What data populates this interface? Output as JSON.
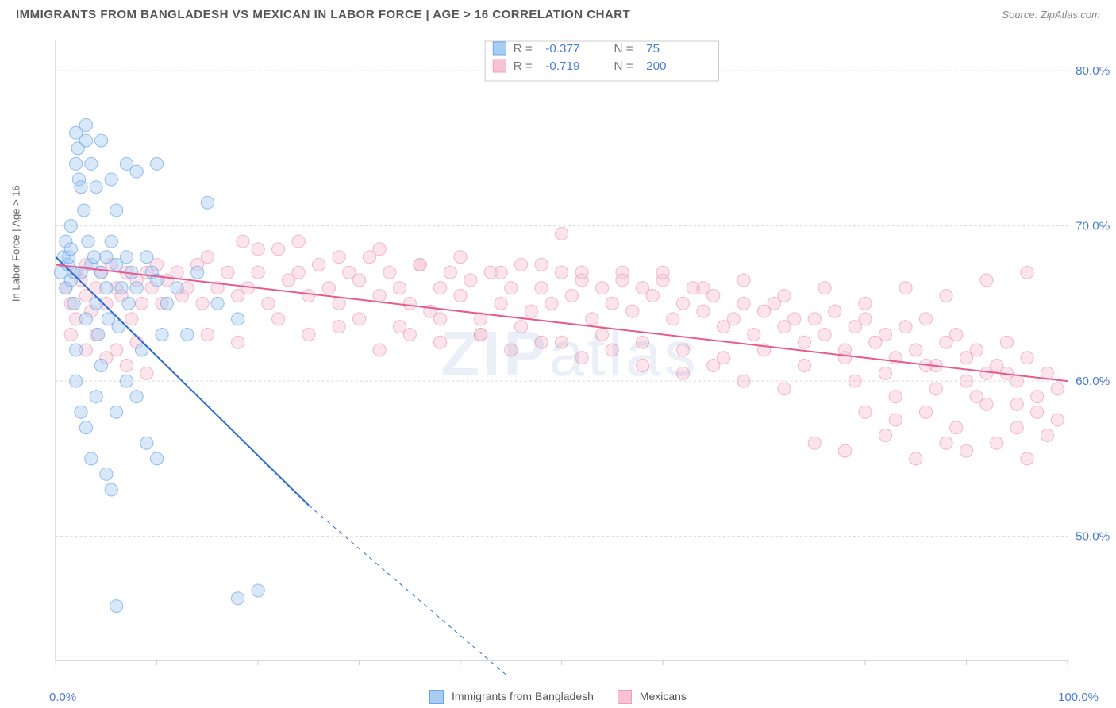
{
  "header": {
    "title": "IMMIGRANTS FROM BANGLADESH VS MEXICAN IN LABOR FORCE | AGE > 16 CORRELATION CHART",
    "source_label": "Source:",
    "source_name": "ZipAtlas.com"
  },
  "chart": {
    "type": "scatter",
    "ylabel": "In Labor Force | Age > 16",
    "xlim": [
      0,
      100
    ],
    "ylim": [
      42,
      82
    ],
    "xtick_labels": [
      "0.0%",
      "100.0%"
    ],
    "ytick_values": [
      50,
      60,
      70,
      80
    ],
    "ytick_labels": [
      "50.0%",
      "60.0%",
      "70.0%",
      "80.0%"
    ],
    "grid_color": "#d8d8d8",
    "axis_color": "#cccccc",
    "background_color": "#ffffff",
    "tick_label_color": "#4a7bd8",
    "marker_radius": 8,
    "marker_opacity": 0.45,
    "line_width": 2,
    "series": [
      {
        "name": "Immigrants from Bangladesh",
        "color": "#6ea5e8",
        "fill": "#a9cdf2",
        "line_color": "#2e6bd1",
        "R": "-0.377",
        "N": "75",
        "trend": {
          "x1": 0,
          "y1": 68,
          "x2": 25,
          "y2": 52,
          "extrap_x2": 50,
          "extrap_y2": 38
        },
        "points": [
          [
            0.5,
            67
          ],
          [
            0.8,
            68
          ],
          [
            1,
            66
          ],
          [
            1,
            69
          ],
          [
            1.2,
            67.5
          ],
          [
            1.3,
            68
          ],
          [
            1.5,
            66.5
          ],
          [
            1.5,
            70
          ],
          [
            1.8,
            67
          ],
          [
            2,
            74
          ],
          [
            2,
            76
          ],
          [
            2.2,
            75
          ],
          [
            2.3,
            73
          ],
          [
            2.5,
            72.5
          ],
          [
            2.5,
            67
          ],
          [
            2.8,
            71
          ],
          [
            3,
            76.5
          ],
          [
            3,
            75.5
          ],
          [
            3.2,
            69
          ],
          [
            3.5,
            67.5
          ],
          [
            3.5,
            74
          ],
          [
            3.8,
            68
          ],
          [
            4,
            72.5
          ],
          [
            4,
            65
          ],
          [
            4.2,
            63
          ],
          [
            4.5,
            67
          ],
          [
            4.5,
            75.5
          ],
          [
            5,
            66
          ],
          [
            5,
            68
          ],
          [
            5.2,
            64
          ],
          [
            5.5,
            73
          ],
          [
            5.5,
            69
          ],
          [
            6,
            67.5
          ],
          [
            6,
            71
          ],
          [
            6.2,
            63.5
          ],
          [
            6.5,
            66
          ],
          [
            7,
            74
          ],
          [
            7,
            68
          ],
          [
            7.2,
            65
          ],
          [
            7.5,
            67
          ],
          [
            8,
            73.5
          ],
          [
            8,
            66
          ],
          [
            8.5,
            62
          ],
          [
            9,
            68
          ],
          [
            9.5,
            67
          ],
          [
            10,
            74
          ],
          [
            10,
            66.5
          ],
          [
            10.5,
            63
          ],
          [
            2,
            60
          ],
          [
            2.5,
            58
          ],
          [
            3,
            57
          ],
          [
            3.5,
            55
          ],
          [
            4,
            59
          ],
          [
            5,
            54
          ],
          [
            5.5,
            53
          ],
          [
            6,
            58
          ],
          [
            2,
            62
          ],
          [
            3,
            64
          ],
          [
            1.5,
            68.5
          ],
          [
            1.8,
            65
          ],
          [
            8,
            59
          ],
          [
            9,
            56
          ],
          [
            10,
            55
          ],
          [
            11,
            65
          ],
          [
            12,
            66
          ],
          [
            13,
            63
          ],
          [
            14,
            67
          ],
          [
            15,
            71.5
          ],
          [
            16,
            65
          ],
          [
            18,
            64
          ],
          [
            6,
            45.5
          ],
          [
            18,
            46
          ],
          [
            20,
            46.5
          ],
          [
            7,
            60
          ],
          [
            4.5,
            61
          ]
        ]
      },
      {
        "name": "Mexicans",
        "color": "#f09db8",
        "fill": "#f7c3d3",
        "line_color": "#e85a8c",
        "R": "-0.719",
        "N": "200",
        "trend": {
          "x1": 0,
          "y1": 67.5,
          "x2": 100,
          "y2": 60
        },
        "points": [
          [
            1,
            66
          ],
          [
            1.5,
            65
          ],
          [
            2,
            67
          ],
          [
            2,
            64
          ],
          [
            2.5,
            66.5
          ],
          [
            3,
            65.5
          ],
          [
            3,
            67.5
          ],
          [
            3.5,
            64.5
          ],
          [
            4,
            66
          ],
          [
            4.5,
            67
          ],
          [
            5,
            65
          ],
          [
            5.5,
            67.5
          ],
          [
            6,
            66
          ],
          [
            6.5,
            65.5
          ],
          [
            7,
            67
          ],
          [
            7.5,
            64
          ],
          [
            8,
            66.5
          ],
          [
            8.5,
            65
          ],
          [
            9,
            67
          ],
          [
            9.5,
            66
          ],
          [
            10,
            67.5
          ],
          [
            10.5,
            65
          ],
          [
            11,
            66.5
          ],
          [
            12,
            67
          ],
          [
            12.5,
            65.5
          ],
          [
            13,
            66
          ],
          [
            14,
            67.5
          ],
          [
            14.5,
            65
          ],
          [
            15,
            68
          ],
          [
            16,
            66
          ],
          [
            17,
            67
          ],
          [
            18,
            65.5
          ],
          [
            18.5,
            69
          ],
          [
            19,
            66
          ],
          [
            20,
            67
          ],
          [
            21,
            65
          ],
          [
            22,
            68.5
          ],
          [
            23,
            66.5
          ],
          [
            24,
            67
          ],
          [
            25,
            65.5
          ],
          [
            26,
            67.5
          ],
          [
            27,
            66
          ],
          [
            28,
            65
          ],
          [
            29,
            67
          ],
          [
            30,
            66.5
          ],
          [
            31,
            68
          ],
          [
            32,
            65.5
          ],
          [
            33,
            67
          ],
          [
            34,
            66
          ],
          [
            35,
            65
          ],
          [
            36,
            67.5
          ],
          [
            37,
            64.5
          ],
          [
            38,
            66
          ],
          [
            39,
            67
          ],
          [
            40,
            65.5
          ],
          [
            41,
            66.5
          ],
          [
            42,
            64
          ],
          [
            43,
            67
          ],
          [
            44,
            65
          ],
          [
            45,
            66
          ],
          [
            46,
            67.5
          ],
          [
            47,
            64.5
          ],
          [
            48,
            66
          ],
          [
            49,
            65
          ],
          [
            50,
            67
          ],
          [
            50,
            69.5
          ],
          [
            51,
            65.5
          ],
          [
            52,
            66.5
          ],
          [
            53,
            64
          ],
          [
            54,
            66
          ],
          [
            55,
            65
          ],
          [
            56,
            67
          ],
          [
            57,
            64.5
          ],
          [
            58,
            66
          ],
          [
            59,
            65.5
          ],
          [
            60,
            66.5
          ],
          [
            61,
            64
          ],
          [
            62,
            65
          ],
          [
            63,
            66
          ],
          [
            64,
            64.5
          ],
          [
            65,
            65.5
          ],
          [
            66,
            63.5
          ],
          [
            67,
            64
          ],
          [
            68,
            65
          ],
          [
            69,
            63
          ],
          [
            70,
            64.5
          ],
          [
            71,
            65
          ],
          [
            72,
            63.5
          ],
          [
            73,
            64
          ],
          [
            74,
            62.5
          ],
          [
            75,
            64
          ],
          [
            76,
            63
          ],
          [
            77,
            64.5
          ],
          [
            78,
            62
          ],
          [
            79,
            63.5
          ],
          [
            80,
            64
          ],
          [
            81,
            62.5
          ],
          [
            82,
            63
          ],
          [
            83,
            61.5
          ],
          [
            84,
            63.5
          ],
          [
            85,
            62
          ],
          [
            86,
            64
          ],
          [
            87,
            61
          ],
          [
            88,
            62.5
          ],
          [
            89,
            63
          ],
          [
            90,
            61.5
          ],
          [
            91,
            62
          ],
          [
            92,
            60.5
          ],
          [
            93,
            61
          ],
          [
            94,
            62.5
          ],
          [
            95,
            60
          ],
          [
            96,
            61.5
          ],
          [
            97,
            59
          ],
          [
            98,
            60.5
          ],
          [
            99,
            59.5
          ],
          [
            75,
            56
          ],
          [
            78,
            55.5
          ],
          [
            82,
            56.5
          ],
          [
            85,
            55
          ],
          [
            88,
            56
          ],
          [
            90,
            55.5
          ],
          [
            93,
            56
          ],
          [
            96,
            55
          ],
          [
            98,
            56.5
          ],
          [
            80,
            58
          ],
          [
            83,
            57.5
          ],
          [
            86,
            58
          ],
          [
            89,
            57
          ],
          [
            92,
            58.5
          ],
          [
            95,
            57
          ],
          [
            15,
            63
          ],
          [
            18,
            62.5
          ],
          [
            22,
            64
          ],
          [
            25,
            63
          ],
          [
            28,
            63.5
          ],
          [
            32,
            62
          ],
          [
            35,
            63
          ],
          [
            38,
            62.5
          ],
          [
            42,
            63
          ],
          [
            45,
            62
          ],
          [
            48,
            62.5
          ],
          [
            52,
            61.5
          ],
          [
            55,
            62
          ],
          [
            58,
            61
          ],
          [
            62,
            60.5
          ],
          [
            65,
            61
          ],
          [
            68,
            60
          ],
          [
            72,
            59.5
          ],
          [
            3,
            62
          ],
          [
            4,
            63
          ],
          [
            5,
            61.5
          ],
          [
            6,
            62
          ],
          [
            7,
            61
          ],
          [
            8,
            62.5
          ],
          [
            9,
            60.5
          ],
          [
            96,
            67
          ],
          [
            92,
            66.5
          ],
          [
            88,
            65.5
          ],
          [
            84,
            66
          ],
          [
            80,
            65
          ],
          [
            20,
            68.5
          ],
          [
            24,
            69
          ],
          [
            28,
            68
          ],
          [
            32,
            68.5
          ],
          [
            36,
            67.5
          ],
          [
            40,
            68
          ],
          [
            44,
            67
          ],
          [
            48,
            67.5
          ],
          [
            52,
            67
          ],
          [
            56,
            66.5
          ],
          [
            60,
            67
          ],
          [
            64,
            66
          ],
          [
            68,
            66.5
          ],
          [
            72,
            65.5
          ],
          [
            76,
            66
          ],
          [
            30,
            64
          ],
          [
            34,
            63.5
          ],
          [
            38,
            64
          ],
          [
            42,
            63
          ],
          [
            46,
            63.5
          ],
          [
            50,
            62.5
          ],
          [
            54,
            63
          ],
          [
            58,
            62.5
          ],
          [
            62,
            62
          ],
          [
            66,
            61.5
          ],
          [
            70,
            62
          ],
          [
            74,
            61
          ],
          [
            78,
            61.5
          ],
          [
            82,
            60.5
          ],
          [
            86,
            61
          ],
          [
            90,
            60
          ],
          [
            94,
            60.5
          ],
          [
            97,
            58
          ],
          [
            99,
            57.5
          ],
          [
            95,
            58.5
          ],
          [
            91,
            59
          ],
          [
            87,
            59.5
          ],
          [
            83,
            59
          ],
          [
            79,
            60
          ],
          [
            1.5,
            63
          ]
        ]
      }
    ],
    "legend_box": {
      "border_color": "#cccccc",
      "bg": "#ffffff",
      "label_color": "#777",
      "value_color": "#4a7bd8",
      "fontsize": 15
    },
    "bottom_legend": {
      "fontsize": 14,
      "label_color": "#555"
    },
    "watermark": "ZIPatlas"
  }
}
